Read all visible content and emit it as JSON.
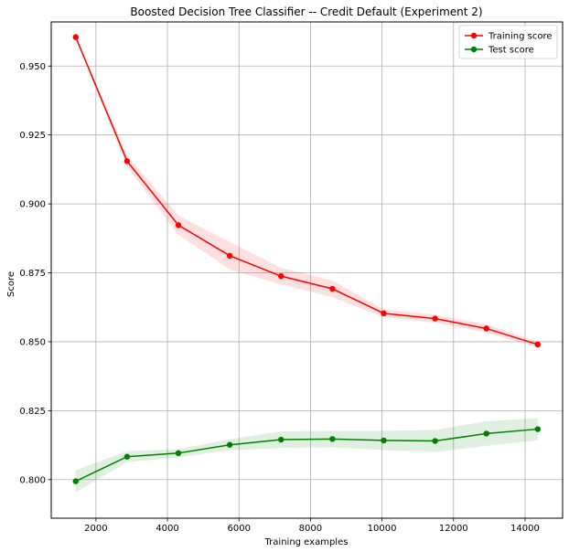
{
  "chart_data": {
    "type": "line",
    "title": "Boosted Decision Tree Classifier -- Credit Default (Experiment 2)",
    "xlabel": "Training examples",
    "ylabel": "Score",
    "xlim": [
      750,
      15050
    ],
    "ylim": [
      0.786,
      0.966
    ],
    "xticks": [
      2000,
      4000,
      6000,
      8000,
      10000,
      12000,
      14000
    ],
    "xtick_labels": [
      "2000",
      "4000",
      "6000",
      "8000",
      "10000",
      "12000",
      "14000"
    ],
    "yticks": [
      0.8,
      0.825,
      0.85,
      0.875,
      0.9,
      0.925,
      0.95
    ],
    "ytick_labels": [
      "0.800",
      "0.825",
      "0.850",
      "0.875",
      "0.900",
      "0.925",
      "0.950"
    ],
    "grid": true,
    "legend_position": "top-right",
    "x": [
      1435,
      2871,
      4306,
      5742,
      7177,
      8613,
      10048,
      11484,
      12919,
      14355
    ],
    "series": [
      {
        "name": "Training score",
        "color": "#ff0000",
        "values": [
          0.9605,
          0.9155,
          0.8923,
          0.8812,
          0.8738,
          0.8692,
          0.8603,
          0.8584,
          0.8548,
          0.849
        ],
        "band_lower": [
          0.96,
          0.9135,
          0.8888,
          0.8762,
          0.8708,
          0.8662,
          0.8588,
          0.8569,
          0.8533,
          0.848
        ],
        "band_upper": [
          0.961,
          0.9175,
          0.8958,
          0.8862,
          0.8768,
          0.8722,
          0.8618,
          0.8599,
          0.8563,
          0.85
        ]
      },
      {
        "name": "Test score",
        "color": "#008000",
        "values": [
          0.7994,
          0.8083,
          0.8096,
          0.8126,
          0.8145,
          0.8147,
          0.8142,
          0.814,
          0.8167,
          0.8183
        ],
        "band_lower": [
          0.7954,
          0.8063,
          0.8081,
          0.8106,
          0.8115,
          0.8117,
          0.8107,
          0.81,
          0.8122,
          0.8143
        ],
        "band_upper": [
          0.8034,
          0.8103,
          0.8111,
          0.8146,
          0.8175,
          0.8177,
          0.8177,
          0.818,
          0.8212,
          0.8223
        ]
      }
    ]
  }
}
